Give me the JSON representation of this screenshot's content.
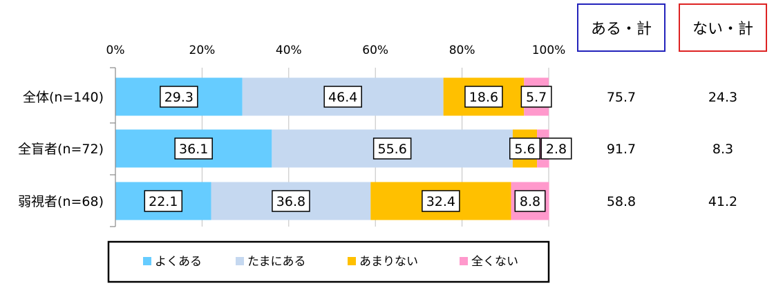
{
  "chart_data": {
    "type": "bar",
    "orientation": "horizontal",
    "stacked": true,
    "categories": [
      "全体(n=140)",
      "全盲者(n=72)",
      "弱視者(n=68)"
    ],
    "series": [
      {
        "name": "よくある",
        "values": [
          29.3,
          36.1,
          22.1
        ],
        "color": "#66CCFF"
      },
      {
        "name": "たまにある",
        "values": [
          46.4,
          55.6,
          36.8
        ],
        "color": "#C5D8F0"
      },
      {
        "name": "あまりない",
        "values": [
          18.6,
          5.6,
          32.4
        ],
        "color": "#FFC000"
      },
      {
        "name": "全くない",
        "values": [
          5.7,
          2.8,
          8.8
        ],
        "color": "#FF99CC"
      }
    ],
    "x_ticks": [
      "0%",
      "20%",
      "40%",
      "60%",
      "80%",
      "100%"
    ],
    "xlim": [
      0,
      100
    ],
    "grid": true,
    "legend_position": "bottom",
    "summary": {
      "columns": [
        {
          "label": "ある・計",
          "border_color": "#2222BB",
          "values": [
            "75.7",
            "91.7",
            "58.8"
          ]
        },
        {
          "label": "ない・計",
          "border_color": "#DD2222",
          "values": [
            "24.3",
            "8.3",
            "41.2"
          ]
        }
      ]
    }
  }
}
